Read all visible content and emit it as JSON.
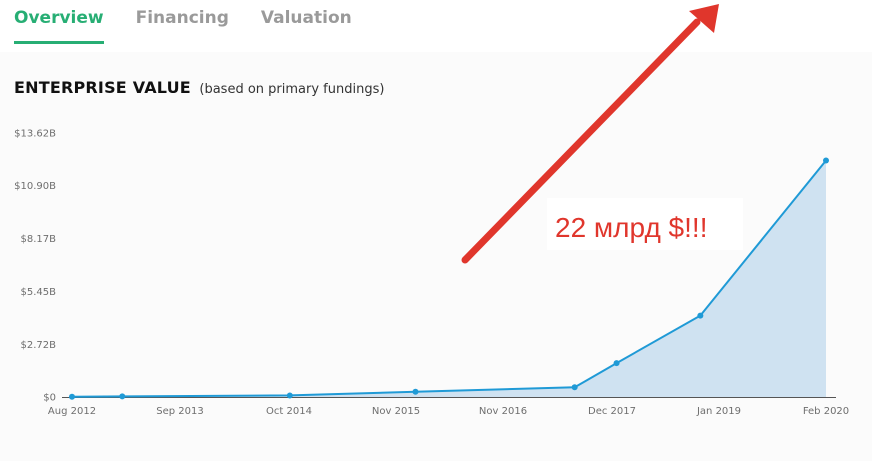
{
  "tabs": [
    {
      "label": "Overview",
      "active": true
    },
    {
      "label": "Financing",
      "active": false
    },
    {
      "label": "Valuation",
      "active": false
    }
  ],
  "header": {
    "title": "ENTERPRISE VALUE",
    "subtitle": "(based on primary fundings)"
  },
  "annotation": {
    "text": "22 млрд $!!!",
    "color": "#e0362c"
  },
  "colors": {
    "accent": "#27ae74",
    "line": "#1f9ad6",
    "area": "#cfe2f1",
    "arrow": "#e0362c"
  },
  "chart_data": {
    "type": "area",
    "title": "",
    "xlabel": "",
    "ylabel": "",
    "y_ticks": [
      "$0",
      "$2.72B",
      "$5.45B",
      "$8.17B",
      "$10.90B",
      "$13.62B"
    ],
    "y_tick_values": [
      0,
      2.72,
      5.45,
      8.17,
      10.9,
      13.62
    ],
    "x_ticks": [
      "Aug 2012",
      "Sep 2013",
      "Oct 2014",
      "Nov 2015",
      "Nov 2016",
      "Dec 2017",
      "Jan 2019",
      "Feb 2020"
    ],
    "ylim": [
      0,
      13.62
    ],
    "unit": "billion USD",
    "series": [
      {
        "x": [
          "2012-08",
          "2013-02",
          "2014-10",
          "2016-01",
          "2017-08",
          "2018-01",
          "2018-11",
          "2020-02"
        ],
        "values": [
          0.01,
          0.03,
          0.08,
          0.27,
          0.5,
          1.75,
          4.2,
          12.2
        ]
      }
    ],
    "grid": false
  }
}
